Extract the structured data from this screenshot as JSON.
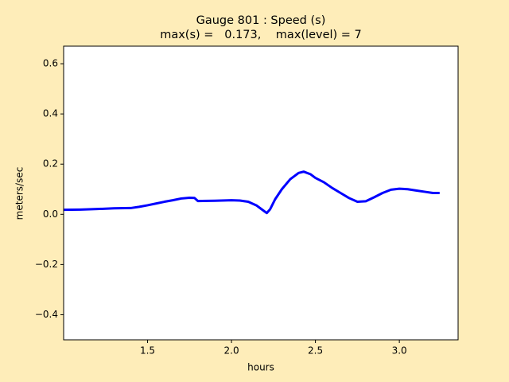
{
  "chart_data": {
    "type": "line",
    "title": "Gauge 801 : Speed (s)",
    "subtitle": "max(s) =   0.173,    max(level) = 7",
    "x_label": "hours",
    "y_label": "meters/sec",
    "xlim": [
      1.0,
      3.35
    ],
    "ylim": [
      -0.5,
      0.67
    ],
    "xticks": [
      1.5,
      {
        "value": 2.0,
        "label": "2.0"
      },
      2.5,
      {
        "value": 3.0,
        "label": "3.0"
      }
    ],
    "yticks": [
      {
        "value": -0.4,
        "label": "−0.4"
      },
      {
        "value": -0.2,
        "label": "−0.2"
      },
      {
        "value": 0.0,
        "label": "0.0"
      },
      0.2,
      0.4,
      0.6
    ],
    "x": [
      1.0,
      1.1,
      1.2,
      1.3,
      1.4,
      1.45,
      1.5,
      1.55,
      1.6,
      1.65,
      1.7,
      1.75,
      1.78,
      1.8,
      1.9,
      2.0,
      2.05,
      2.1,
      2.15,
      2.18,
      2.21,
      2.23,
      2.26,
      2.3,
      2.35,
      2.4,
      2.43,
      2.47,
      2.5,
      2.55,
      2.6,
      2.65,
      2.7,
      2.75,
      2.8,
      2.85,
      2.9,
      2.95,
      3.0,
      3.05,
      3.1,
      3.15,
      3.2,
      3.24
    ],
    "series": [
      {
        "name": "s",
        "color": "#0000ff",
        "values": [
          0.018,
          0.019,
          0.021,
          0.024,
          0.025,
          0.03,
          0.036,
          0.043,
          0.05,
          0.056,
          0.063,
          0.066,
          0.065,
          0.053,
          0.054,
          0.056,
          0.055,
          0.05,
          0.035,
          0.02,
          0.005,
          0.02,
          0.06,
          0.1,
          0.14,
          0.165,
          0.17,
          0.16,
          0.145,
          0.128,
          0.105,
          0.085,
          0.065,
          0.05,
          0.052,
          0.068,
          0.085,
          0.098,
          0.102,
          0.1,
          0.095,
          0.09,
          0.085,
          0.085
        ]
      }
    ]
  }
}
